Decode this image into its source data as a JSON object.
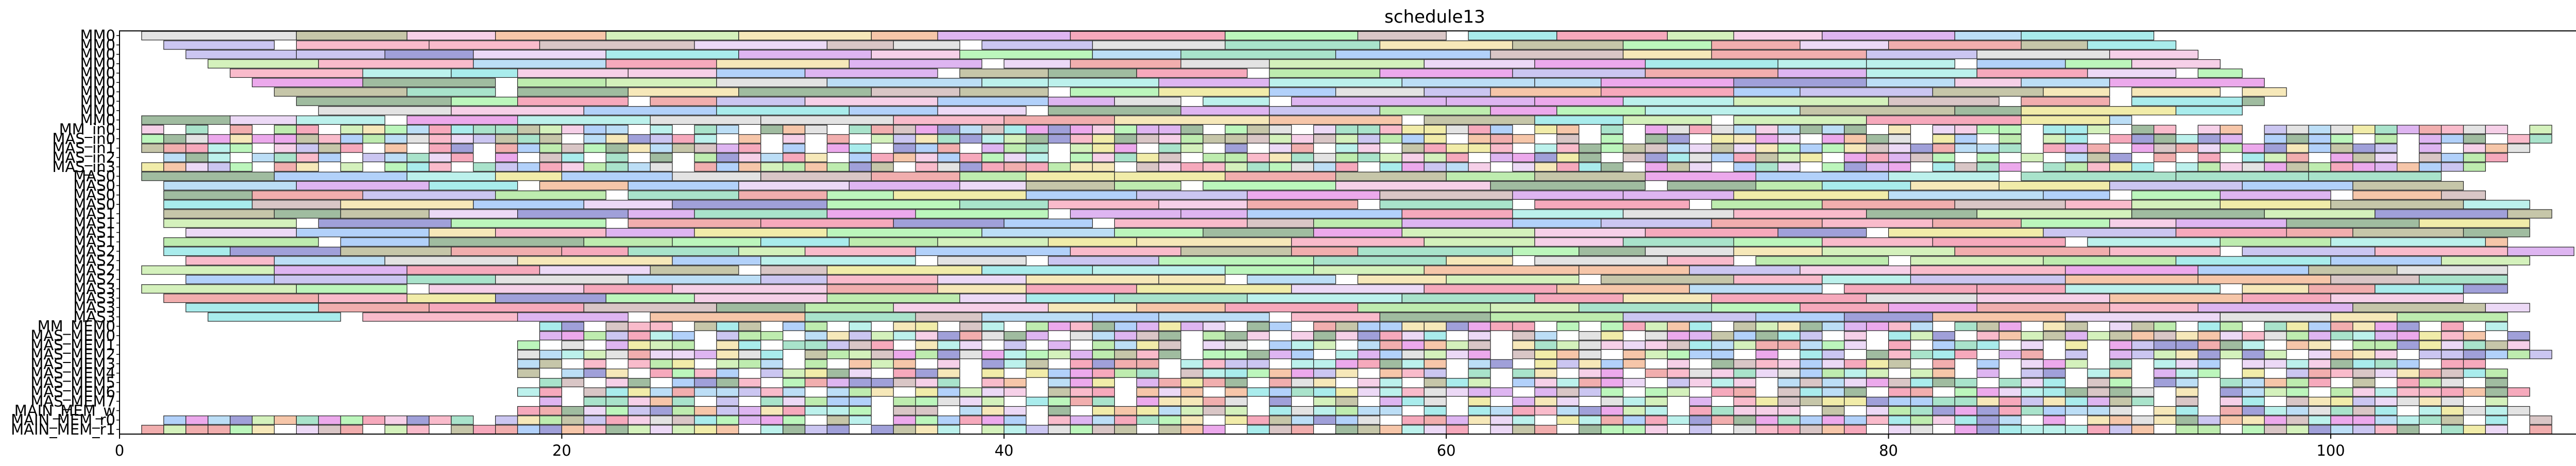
{
  "chart_data": {
    "type": "gantt",
    "title": "schedule13",
    "xlabel": "",
    "ylabel": "",
    "xlim": [
      0,
      112
    ],
    "xticks": [
      0,
      20,
      40,
      60,
      80,
      100
    ],
    "grid": false,
    "legend": "none",
    "rows": [
      "MM0",
      "MM0",
      "MM0",
      "MM0",
      "MM0",
      "MM0",
      "MM0",
      "MM0",
      "MM0",
      "MM0",
      "MM_in0",
      "MAS_in0",
      "MAS_in1",
      "MAS_in2",
      "MAS_in3",
      "MAS0",
      "MAS0",
      "MAS0",
      "MAS0",
      "MAS1",
      "MAS1",
      "MAS1",
      "MAS1",
      "MAS2",
      "MAS2",
      "MAS2",
      "MAS2",
      "MAS3",
      "MAS3",
      "MAS3",
      "MAS3",
      "MM_MEM0",
      "MAS_MEM0",
      "MAS_MEM1",
      "MAS_MEM2",
      "MAS_MEM3",
      "MAS_MEM4",
      "MAS_MEM5",
      "MAS_MEM6",
      "MAS_MEM7",
      "MAIN_MEM_w",
      "MAIN_MEM_r0",
      "MAIN_MEM_r1"
    ],
    "row_extents": [
      [
        1,
        92
      ],
      [
        2,
        93
      ],
      [
        3,
        94
      ],
      [
        4,
        95
      ],
      [
        5,
        96
      ],
      [
        6,
        97
      ],
      [
        7,
        98
      ],
      [
        8,
        97
      ],
      [
        9,
        96
      ],
      [
        1,
        91
      ],
      [
        1,
        110
      ],
      [
        1,
        110
      ],
      [
        1,
        109
      ],
      [
        1,
        108
      ],
      [
        1,
        107
      ],
      [
        1,
        105
      ],
      [
        2,
        106
      ],
      [
        2,
        107
      ],
      [
        1,
        109
      ],
      [
        2,
        110
      ],
      [
        2,
        109
      ],
      [
        3,
        109
      ],
      [
        2,
        108
      ],
      [
        2,
        111
      ],
      [
        3,
        110
      ],
      [
        1,
        109
      ],
      [
        3,
        108
      ],
      [
        1,
        108
      ],
      [
        2,
        107
      ],
      [
        3,
        109
      ],
      [
        4,
        108
      ],
      [
        19,
        108
      ],
      [
        19,
        109
      ],
      [
        18,
        109
      ],
      [
        18,
        110
      ],
      [
        18,
        108
      ],
      [
        18,
        109
      ],
      [
        18,
        108
      ],
      [
        18,
        109
      ],
      [
        19,
        108
      ],
      [
        18,
        109
      ],
      [
        1,
        110
      ],
      [
        1,
        110
      ]
    ],
    "palette": [
      "#7fb2f7",
      "#f58ea8",
      "#93e07a",
      "#c883e8",
      "#f0d98a",
      "#8fe8e0",
      "#e87878",
      "#a8a0e8",
      "#b8e890",
      "#f0b0d8",
      "#90c8f0",
      "#f0a070",
      "#70d0a8",
      "#d0d0d0",
      "#a0a070",
      "#6060c0",
      "#e8e070",
      "#e070e0",
      "#70e0e0",
      "#c0a0a0",
      "#609060",
      "#e0c0f0",
      "#f07090",
      "#90f090"
    ]
  }
}
